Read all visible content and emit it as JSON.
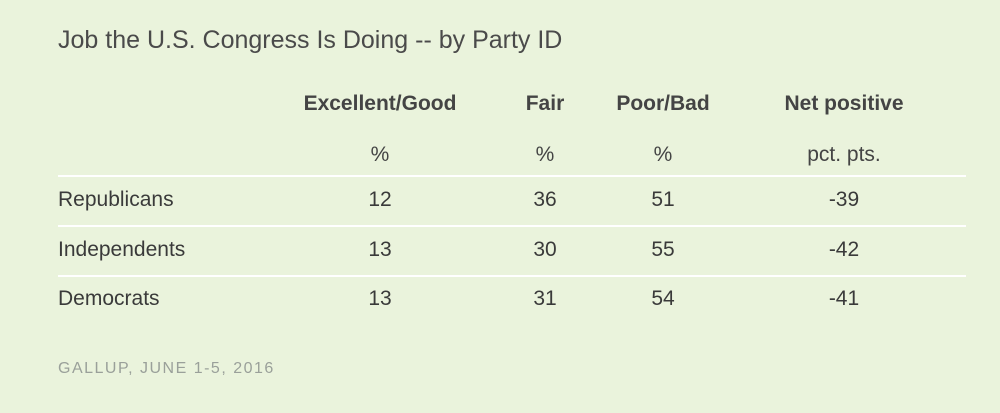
{
  "title": "Job the U.S. Congress Is Doing -- by Party ID",
  "source": "GALLUP, JUNE 1-5, 2016",
  "chart_data": {
    "type": "table",
    "title": "Job the U.S. Congress Is Doing -- by Party ID",
    "columns": [
      {
        "label": "Excellent/Good",
        "unit": "%"
      },
      {
        "label": "Fair",
        "unit": "%"
      },
      {
        "label": "Poor/Bad",
        "unit": "%"
      },
      {
        "label": "Net positive",
        "unit": "pct. pts."
      }
    ],
    "rows": [
      {
        "label": "Republicans",
        "values": [
          "12",
          "36",
          "51",
          "-39"
        ]
      },
      {
        "label": "Independents",
        "values": [
          "13",
          "30",
          "55",
          "-42"
        ]
      },
      {
        "label": "Democrats",
        "values": [
          "13",
          "31",
          "54",
          "-41"
        ]
      }
    ]
  }
}
